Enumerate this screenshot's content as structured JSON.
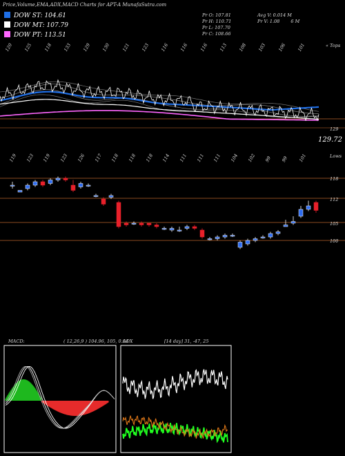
{
  "title": "Price,Volume,EMA,ADX,MACD Charts for APT-A MunafaSutra.com",
  "legend": [
    {
      "label": "DOW ST: 104.61",
      "color": "#1f6fe8"
    },
    {
      "label": "DOW MT: 107.79",
      "color": "#ffffff"
    },
    {
      "label": "DOW PT: 113.51",
      "color": "#ff66ff"
    }
  ],
  "ohlc": {
    "open": "Pr O: 107.81",
    "high": "Pr H: 110.71",
    "low": "Pr L: 107.70",
    "close": "Pr C: 108.66",
    "avg_volume": "Avg V: 0.014 M",
    "volume": "Pr V: 1.08",
    "volume_unit": "6 M"
  },
  "upper_panel": {
    "top_numbers": [
      "120",
      "125",
      "118",
      "133",
      "129",
      "130",
      "121",
      "123",
      "116",
      "116",
      "116",
      "113",
      "108",
      "103",
      "106",
      "101"
    ],
    "bottom_numbers": [
      "119",
      "123",
      "119",
      "123",
      "126",
      "117",
      "118",
      "118",
      "118",
      "114",
      "111",
      "111",
      "111",
      "104",
      "102",
      "99",
      "99",
      "101"
    ],
    "right_top_label": "« Tops",
    "right_bottom_label": "Lows",
    "price_tag": "129.72",
    "right_tag": "129"
  },
  "candle_panel": {
    "price_levels": [
      "118",
      "112",
      "105",
      "100"
    ]
  },
  "macd": {
    "label": "MACD:",
    "params": "( 12,26,9 ) 104.96, 105, 0.04"
  },
  "adx": {
    "label": "ADX",
    "params": "[14 day] 31, -47, 25"
  },
  "chart_data": {
    "type": "line",
    "title": "Price,Volume,EMA,ADX,MACD Charts for APT-A MunafaSutra.com",
    "panels": [
      "price_ema",
      "candlestick",
      "macd",
      "adx"
    ],
    "series": [
      {
        "name": "DOW ST",
        "value": 104.61,
        "color": "#1f6fe8"
      },
      {
        "name": "DOW MT",
        "value": 107.79,
        "color": "#ffffff"
      },
      {
        "name": "DOW PT",
        "value": 113.51,
        "color": "#ff66ff"
      }
    ],
    "candles": [
      {
        "o": 116,
        "c": 116,
        "h": 117,
        "l": 115
      },
      {
        "o": 114,
        "c": 114.5,
        "h": 114.5,
        "l": 114
      },
      {
        "o": 115,
        "c": 116,
        "h": 116.5,
        "l": 114.5
      },
      {
        "o": 116,
        "c": 117,
        "h": 117.5,
        "l": 115.5
      },
      {
        "o": 117,
        "c": 116,
        "h": 117.5,
        "l": 115.5
      },
      {
        "o": 116.5,
        "c": 117.5,
        "h": 118,
        "l": 116
      },
      {
        "o": 117.5,
        "c": 118,
        "h": 118.5,
        "l": 117
      },
      {
        "o": 118,
        "c": 117.5,
        "h": 118.5,
        "l": 117
      },
      {
        "o": 116,
        "c": 114.5,
        "h": 117.5,
        "l": 114
      },
      {
        "o": 115.5,
        "c": 116.5,
        "h": 117,
        "l": 115
      },
      {
        "o": 116,
        "c": 116,
        "h": 116.5,
        "l": 115.5
      },
      {
        "o": 113,
        "c": 113,
        "h": 113.5,
        "l": 112.5
      },
      {
        "o": 112,
        "c": 110.5,
        "h": 112.5,
        "l": 110
      },
      {
        "o": 112.5,
        "c": 113,
        "h": 113.5,
        "l": 112
      },
      {
        "o": 111,
        "c": 104,
        "h": 111.5,
        "l": 103.5
      },
      {
        "o": 105,
        "c": 104.5,
        "h": 105.5,
        "l": 104
      },
      {
        "o": 105,
        "c": 105,
        "h": 105.5,
        "l": 104.5
      },
      {
        "o": 105,
        "c": 104.5,
        "h": 105.5,
        "l": 104
      },
      {
        "o": 105,
        "c": 104.5,
        "h": 105,
        "l": 104
      },
      {
        "o": 104.5,
        "c": 104,
        "h": 105,
        "l": 103.5
      },
      {
        "o": 103.5,
        "c": 103.5,
        "h": 104,
        "l": 103
      },
      {
        "o": 103,
        "c": 103.5,
        "h": 104,
        "l": 102.5
      },
      {
        "o": 103,
        "c": 103,
        "h": 104,
        "l": 102.5
      },
      {
        "o": 103.5,
        "c": 104,
        "h": 104.5,
        "l": 103
      },
      {
        "o": 104,
        "c": 103.5,
        "h": 104.5,
        "l": 103
      },
      {
        "o": 103,
        "c": 101,
        "h": 103.5,
        "l": 100.5
      },
      {
        "o": 100.5,
        "c": 100.5,
        "h": 101,
        "l": 100
      },
      {
        "o": 100.5,
        "c": 101,
        "h": 101.5,
        "l": 100
      },
      {
        "o": 101,
        "c": 101.5,
        "h": 102,
        "l": 100.5
      },
      {
        "o": 101.5,
        "c": 101.5,
        "h": 102,
        "l": 101
      },
      {
        "o": 98,
        "c": 99.5,
        "h": 100,
        "l": 97.5
      },
      {
        "o": 99,
        "c": 100,
        "h": 100.5,
        "l": 98.5
      },
      {
        "o": 100,
        "c": 100.5,
        "h": 101,
        "l": 99.5
      },
      {
        "o": 101,
        "c": 101,
        "h": 101.5,
        "l": 100.5
      },
      {
        "o": 101,
        "c": 102,
        "h": 102.5,
        "l": 100.5
      },
      {
        "o": 102,
        "c": 102.5,
        "h": 103,
        "l": 101.5
      },
      {
        "o": 104,
        "c": 104.5,
        "h": 106,
        "l": 104
      },
      {
        "o": 105,
        "c": 105.5,
        "h": 107,
        "l": 104.5
      },
      {
        "o": 107,
        "c": 109,
        "h": 110,
        "l": 106.5
      },
      {
        "o": 109,
        "c": 110,
        "h": 111.5,
        "l": 108.5
      },
      {
        "o": 111,
        "c": 108.7,
        "h": 111.5,
        "l": 108
      }
    ]
  }
}
